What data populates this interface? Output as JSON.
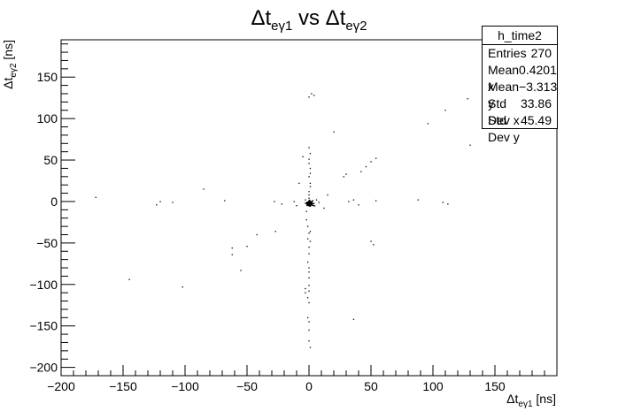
{
  "chart_data": {
    "type": "scatter",
    "title": {
      "main": "Δt",
      "sub1": "eγ1",
      "mid": " vs Δt",
      "sub2": "eγ2"
    },
    "xlabel": {
      "main": "Δt",
      "sub": "eγ1",
      "unit": " [ns]"
    },
    "ylabel": {
      "main": "Δt",
      "sub": "eγ2",
      "unit": " [ns]"
    },
    "xlim": [
      -200,
      200
    ],
    "ylim": [
      -210,
      195
    ],
    "xticks": [
      -200,
      -150,
      -100,
      -50,
      0,
      50,
      100,
      150
    ],
    "xtick_labels": [
      "−200",
      "−150",
      "−100",
      "−50",
      "0",
      "50",
      "100",
      "150"
    ],
    "yticks": [
      -200,
      -150,
      -100,
      -50,
      0,
      50,
      100,
      150
    ],
    "ytick_labels": [
      "−200",
      "−150",
      "−100",
      "−50",
      "0",
      "50",
      "100",
      "150"
    ],
    "grid": false,
    "points": [
      [
        -172,
        5
      ],
      [
        -145,
        -94
      ],
      [
        -123,
        -4
      ],
      [
        -120,
        0
      ],
      [
        -110,
        -1
      ],
      [
        -102,
        -103
      ],
      [
        -85,
        15
      ],
      [
        -68,
        1
      ],
      [
        -62,
        -56
      ],
      [
        -62,
        -64
      ],
      [
        -55,
        -83
      ],
      [
        -50,
        -54
      ],
      [
        -42,
        -40
      ],
      [
        -28,
        0
      ],
      [
        -27,
        -36
      ],
      [
        -22,
        -3
      ],
      [
        -12,
        0
      ],
      [
        -10,
        -5
      ],
      [
        -8,
        22
      ],
      [
        -5,
        54
      ],
      [
        -3,
        -2
      ],
      [
        -3,
        2
      ],
      [
        -2,
        -2
      ],
      [
        -2,
        -12
      ],
      [
        -2,
        -22
      ],
      [
        -1,
        -30
      ],
      [
        0,
        -38
      ],
      [
        -1,
        -45
      ],
      [
        0,
        -55
      ],
      [
        0,
        -63
      ],
      [
        -1,
        -73
      ],
      [
        0,
        -80
      ],
      [
        0,
        -85
      ],
      [
        0,
        -92
      ],
      [
        0,
        -101
      ],
      [
        0,
        -108
      ],
      [
        -1,
        -116
      ],
      [
        0,
        -122
      ],
      [
        -1,
        -140
      ],
      [
        0,
        -145
      ],
      [
        0,
        -155
      ],
      [
        0,
        -168
      ],
      [
        1,
        -176
      ],
      [
        -3,
        -105
      ],
      [
        -3,
        -110
      ],
      [
        1,
        -36
      ],
      [
        1,
        -48
      ],
      [
        0,
        4
      ],
      [
        0,
        8
      ],
      [
        0,
        12
      ],
      [
        1,
        18
      ],
      [
        1,
        22
      ],
      [
        0,
        30
      ],
      [
        1,
        34
      ],
      [
        1,
        40
      ],
      [
        0,
        46
      ],
      [
        0,
        51
      ],
      [
        1,
        58
      ],
      [
        0,
        65
      ],
      [
        0,
        126
      ],
      [
        2,
        130
      ],
      [
        4,
        128
      ],
      [
        6,
        2
      ],
      [
        8,
        -1
      ],
      [
        12,
        -8
      ],
      [
        15,
        8
      ],
      [
        20,
        84
      ],
      [
        28,
        30
      ],
      [
        30,
        33
      ],
      [
        32,
        0
      ],
      [
        36,
        -142
      ],
      [
        36,
        2
      ],
      [
        40,
        -4
      ],
      [
        42,
        36
      ],
      [
        46,
        42
      ],
      [
        50,
        48
      ],
      [
        50,
        -48
      ],
      [
        52,
        -52
      ],
      [
        54,
        52
      ],
      [
        54,
        1
      ],
      [
        88,
        2
      ],
      [
        96,
        94
      ],
      [
        108,
        -1
      ],
      [
        110,
        110
      ],
      [
        128,
        124
      ],
      [
        130,
        68
      ],
      [
        112,
        -3
      ]
    ],
    "cluster": {
      "center": [
        0.4,
        -2.5
      ],
      "count": 180,
      "spread": [
        1.8,
        2.2
      ]
    },
    "legend": "top-right",
    "stats": {
      "name": "h_time2",
      "rows": [
        {
          "label": "Entries",
          "value": "270"
        },
        {
          "label": "Mean x",
          "value": "0.4201"
        },
        {
          "label": "Mean y",
          "value": "−3.313"
        },
        {
          "label": "Std Dev x",
          "value": "33.86"
        },
        {
          "label": "Std Dev y",
          "value": "45.49"
        }
      ]
    }
  }
}
